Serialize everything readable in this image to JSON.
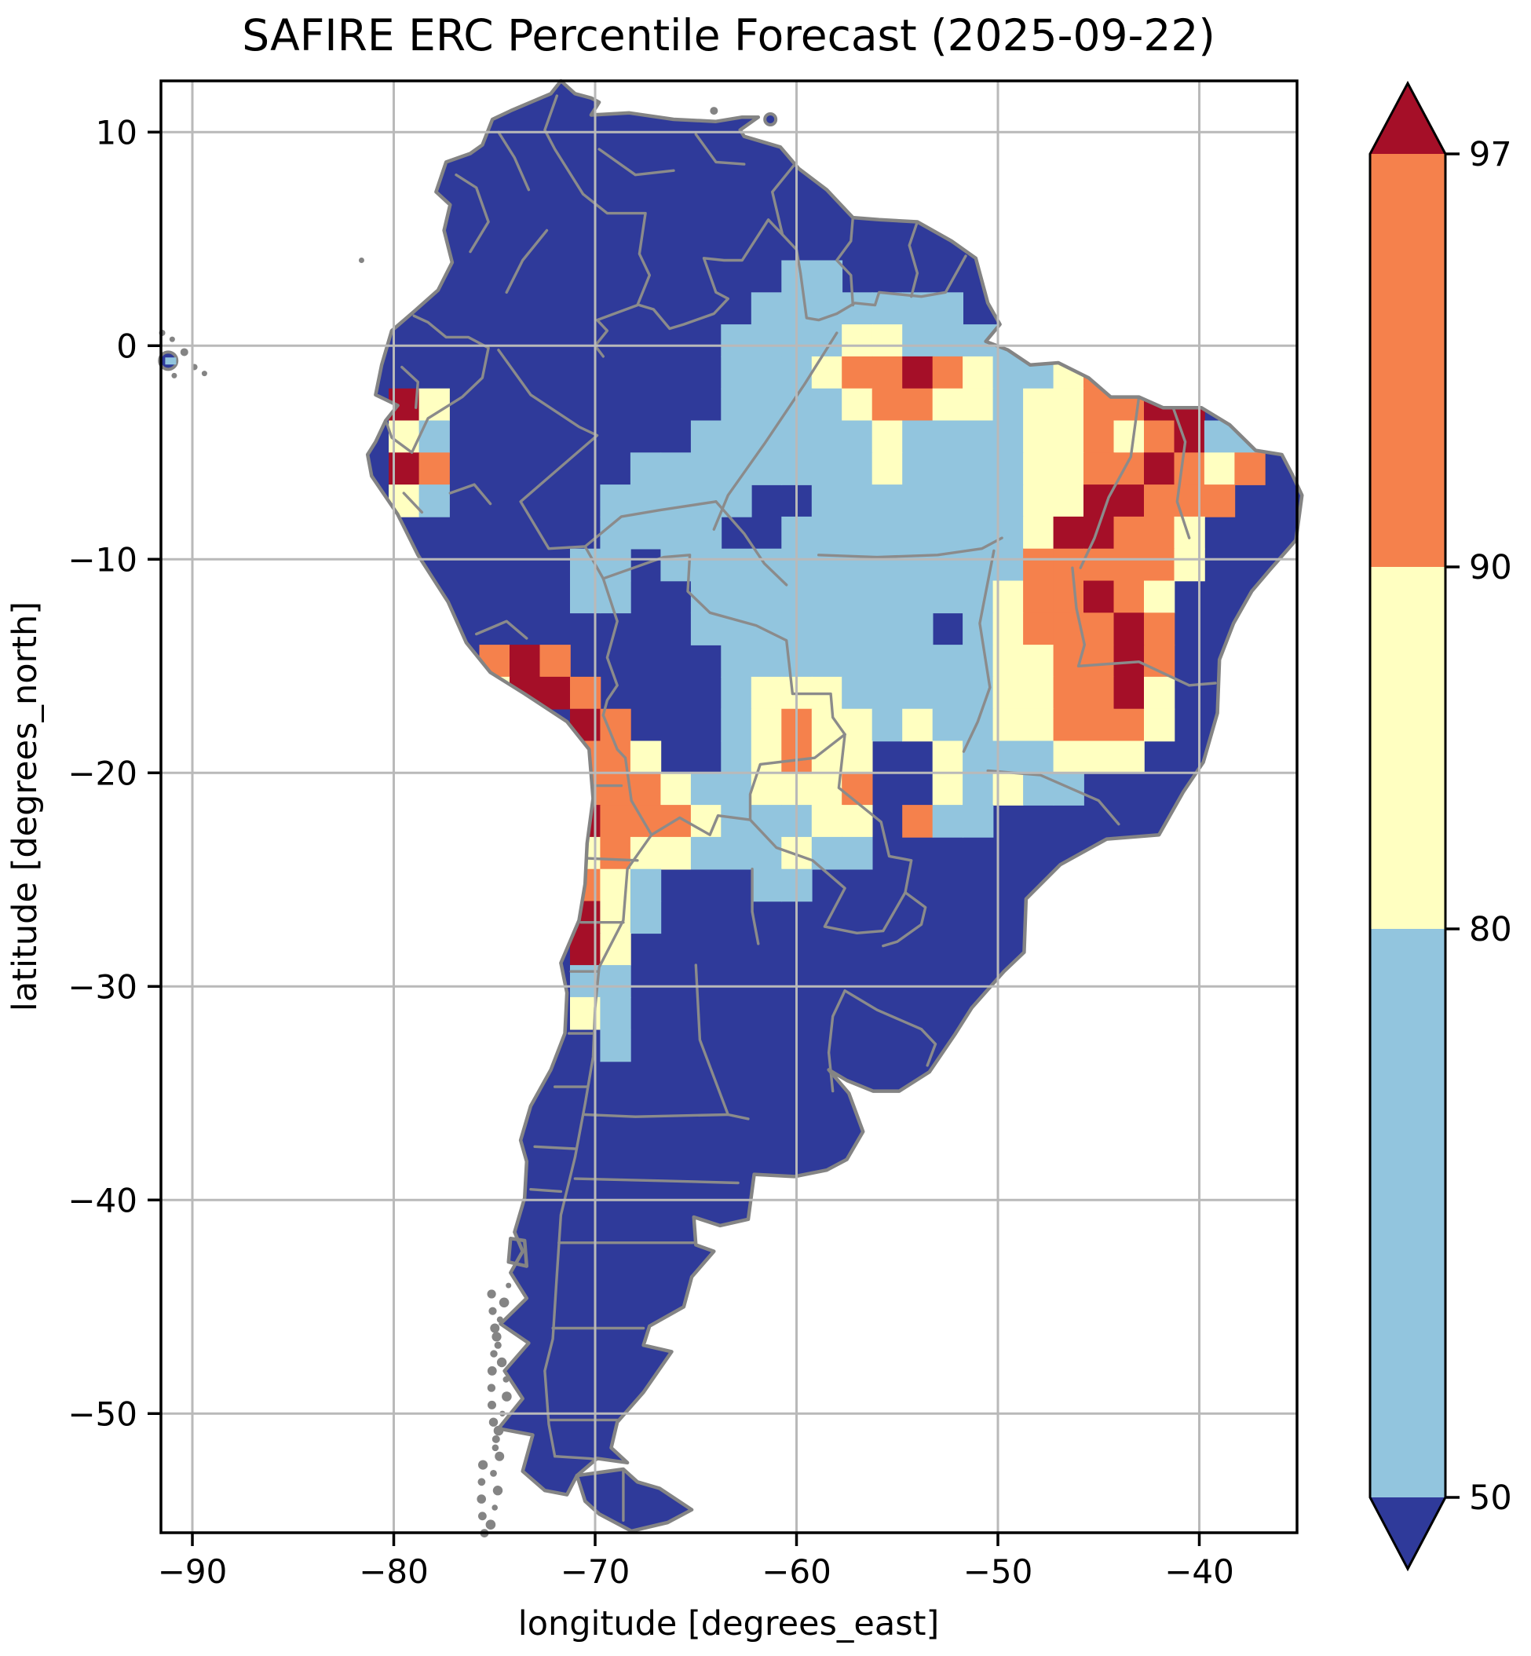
{
  "title": "SAFIRE ERC Percentile Forecast (2025-09-22)",
  "axes": {
    "xlabel": "longitude [degrees_east]",
    "ylabel": "latitude [degrees_north]",
    "xticks": [
      {
        "value": -90,
        "label": "−90"
      },
      {
        "value": -80,
        "label": "−80"
      },
      {
        "value": -70,
        "label": "−70"
      },
      {
        "value": -60,
        "label": "−60"
      },
      {
        "value": -50,
        "label": "−50"
      },
      {
        "value": -40,
        "label": "−40"
      }
    ],
    "yticks": [
      {
        "value": 10,
        "label": "10"
      },
      {
        "value": 0,
        "label": "0"
      },
      {
        "value": -10,
        "label": "−10"
      },
      {
        "value": -20,
        "label": "−20"
      },
      {
        "value": -30,
        "label": "−30"
      },
      {
        "value": -40,
        "label": "−40"
      },
      {
        "value": -50,
        "label": "−50"
      }
    ]
  },
  "colorbar": {
    "boundary_labels": [
      {
        "value": 97,
        "label": "97"
      },
      {
        "value": 90,
        "label": "90"
      },
      {
        "value": 80,
        "label": "80"
      },
      {
        "value": 50,
        "label": "50"
      }
    ],
    "over_color": "#a50f28",
    "under_color": "#2f3a9a",
    "segments": [
      {
        "range": "90–97",
        "color": "#f5814c"
      },
      {
        "range": "80–90",
        "color": "#ffffc1"
      },
      {
        "range": "50–80",
        "color": "#92c5de"
      }
    ]
  },
  "style": {
    "background": "#ffffff",
    "gridline": "#b9b9b9",
    "admin_border": "#8b8b8b",
    "coastline": "#848484",
    "spine": "#000000",
    "text": "#000000"
  },
  "chart_data": {
    "type": "heatmap",
    "title": "SAFIRE ERC Percentile Forecast (2025-09-22)",
    "xlabel": "longitude [degrees_east]",
    "ylabel": "latitude [degrees_north]",
    "xlim": [
      -91.6,
      -35.1
    ],
    "ylim": [
      -55.6,
      12.4
    ],
    "legend_position": "right colorbar with over/under extend triangles",
    "grid_on": true,
    "classes": {
      ".": {
        "label": "below 50 (land base)",
        "color": "#2f3a9a"
      },
      "b": {
        "label": "50–80",
        "color": "#92c5de"
      },
      "y": {
        "label": "80–90",
        "color": "#ffffc1"
      },
      "o": {
        "label": "90–97",
        "color": "#f5814c"
      },
      "r": {
        "label": "above 97",
        "color": "#a50f28"
      }
    },
    "grid": {
      "lon_left": -83.25,
      "lat_top": 13.0,
      "cell_deg": 1.5,
      "rows": [
        ".................................",
        ".................................",
        ".................................",
        ".................................",
        ".................................",
        ".................................",
        "...............bb................",
        "..............bbbbbbb............",
        ".............bbbbyybbbb..........",
        ".............bbbyooroybbyob......",
        "..ry.........bbbbyooyybyyoorr....",
        "..yb........bbbbbbybbbbyyoyorbb..",
        "..ro......bbbbbbbbybbbbyyooroyo..",
        "..yb.....bbbbb..bbbbbbbyyrrooo...",
        ".........bbbb..bbbbbbbbyrrooy....",
        "........bb.bbbbbbbbbbbboooooy....",
        "........bb..bbbbbbbbbbyooroy.....",
        "............bbbbbbbb.byoooro.....",
        ".....oro.....bbbbbbbbbyyooro.....",
        ".....yrro....byyybbbbbyyoory.....",
        "........ro...byoyybybbyyoooy.....",
        "........ooy..byoyy..ybbbyyy......",
        "........oooybbyyyo..ybybb........",
        "........roooybbbyy.obb...........",
        "........yoyybbbybb...............",
        "........oyb...bb.................",
        "........ryb......................",
        "........ry.......................",
        "........bb.......................",
        "........yb.......................",
        ".........b.......................",
        ".................................",
        ".................................",
        ".................................",
        ".................................",
        ".................................",
        ".................................",
        ".................................",
        ".................................",
        ".................................",
        ".................................",
        ".................................",
        ".................................",
        ".................................",
        ".................................",
        "................................."
      ]
    }
  }
}
